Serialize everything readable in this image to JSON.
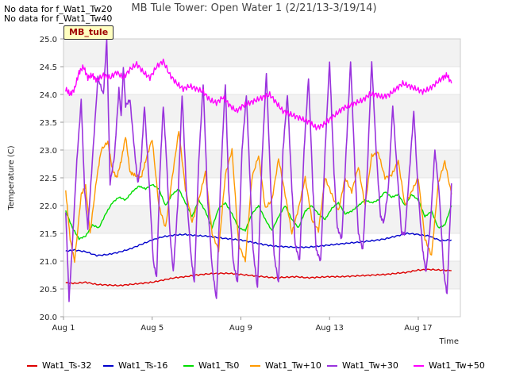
{
  "header": {
    "nodata_lines": [
      "No data for f_Wat1_Tw20",
      "No data for f_Wat1_Tw40"
    ],
    "title": "MB Tule Tower: Open Water 1 (2/21/13-3/19/14)",
    "site_badge": "MB_tule"
  },
  "chart_data": {
    "type": "line",
    "title": "MB Tule Tower: Open Water 1 (2/21/13-3/19/14)",
    "xlabel": "Time",
    "ylabel": "Temperature (C)",
    "ylim": [
      20.0,
      25.0
    ],
    "y_ticks": [
      "20.0",
      "20.5",
      "21.0",
      "21.5",
      "22.0",
      "22.5",
      "23.0",
      "23.5",
      "24.0",
      "24.5",
      "25.0"
    ],
    "xlim": [
      1.0,
      18.9
    ],
    "x_ticks": [
      {
        "value": 1,
        "label": "Aug 1"
      },
      {
        "value": 5,
        "label": "Aug 5"
      },
      {
        "value": 9,
        "label": "Aug 9"
      },
      {
        "value": 13,
        "label": "Aug 13"
      },
      {
        "value": 17,
        "label": "Aug 17"
      }
    ],
    "grid": true,
    "legend_position": "bottom",
    "series": [
      {
        "name": "Wat1_Ts-32",
        "color": "#dd0000",
        "x": [
          1.1,
          1.5,
          2,
          2.5,
          3,
          3.5,
          4,
          4.5,
          5,
          5.5,
          6,
          6.5,
          7,
          7.5,
          8,
          8.5,
          9,
          9.5,
          10,
          10.5,
          11,
          11.5,
          12,
          12.5,
          13,
          13.5,
          14,
          14.5,
          15,
          15.5,
          16,
          16.5,
          17,
          17.5,
          18,
          18.5
        ],
        "y": [
          20.61,
          20.6,
          20.62,
          20.58,
          20.57,
          20.56,
          20.58,
          20.6,
          20.62,
          20.66,
          20.7,
          20.72,
          20.75,
          20.77,
          20.78,
          20.78,
          20.76,
          20.74,
          20.72,
          20.7,
          20.71,
          20.72,
          20.7,
          20.71,
          20.72,
          20.72,
          20.73,
          20.74,
          20.75,
          20.76,
          20.78,
          20.8,
          20.84,
          20.85,
          20.84,
          20.83
        ]
      },
      {
        "name": "Wat1_Ts-16",
        "color": "#0000cc",
        "x": [
          1.1,
          1.5,
          2,
          2.5,
          3,
          3.5,
          4,
          4.5,
          5,
          5.5,
          6,
          6.5,
          7,
          7.5,
          8,
          8.5,
          9,
          9.5,
          10,
          10.5,
          11,
          11.5,
          12,
          12.5,
          13,
          13.5,
          14,
          14.5,
          15,
          15.5,
          16,
          16.5,
          17,
          17.5,
          18,
          18.5
        ],
        "y": [
          21.18,
          21.2,
          21.17,
          21.1,
          21.12,
          21.16,
          21.22,
          21.3,
          21.38,
          21.44,
          21.47,
          21.48,
          21.46,
          21.45,
          21.42,
          21.4,
          21.38,
          21.34,
          21.3,
          21.27,
          21.26,
          21.25,
          21.25,
          21.27,
          21.29,
          21.31,
          21.33,
          21.35,
          21.37,
          21.4,
          21.45,
          21.5,
          21.48,
          21.45,
          21.37,
          21.38
        ]
      },
      {
        "name": "Wat1_Ts0",
        "color": "#00dd00",
        "x": [
          1.1,
          1.4,
          1.7,
          2.0,
          2.3,
          2.6,
          2.9,
          3.2,
          3.5,
          3.8,
          4.1,
          4.4,
          4.7,
          5.0,
          5.3,
          5.6,
          5.9,
          6.2,
          6.5,
          6.8,
          7.1,
          7.4,
          7.7,
          8.0,
          8.3,
          8.6,
          8.9,
          9.2,
          9.5,
          9.8,
          10.1,
          10.4,
          10.7,
          11.0,
          11.3,
          11.6,
          11.9,
          12.2,
          12.5,
          12.8,
          13.1,
          13.4,
          13.7,
          14.0,
          14.3,
          14.6,
          14.9,
          15.2,
          15.5,
          15.8,
          16.1,
          16.4,
          16.7,
          17.0,
          17.3,
          17.6,
          17.9,
          18.2,
          18.5
        ],
        "y": [
          21.9,
          21.6,
          21.4,
          21.45,
          21.65,
          21.6,
          21.85,
          22.05,
          22.15,
          22.1,
          22.25,
          22.35,
          22.3,
          22.38,
          22.3,
          22.0,
          22.2,
          22.3,
          22.05,
          21.8,
          22.1,
          21.9,
          21.6,
          21.95,
          22.05,
          21.85,
          21.6,
          21.55,
          21.85,
          22.0,
          21.75,
          21.55,
          21.8,
          22.0,
          21.75,
          21.6,
          21.9,
          22.0,
          21.85,
          21.75,
          21.95,
          22.05,
          21.85,
          21.9,
          22.0,
          22.1,
          22.05,
          22.1,
          22.25,
          22.15,
          22.2,
          22.0,
          22.2,
          22.1,
          21.8,
          21.9,
          21.6,
          21.65,
          22.0
        ]
      },
      {
        "name": "Wat1_Tw+10",
        "color": "#ff9900",
        "x": [
          1.1,
          1.3,
          1.5,
          1.8,
          2.0,
          2.2,
          2.5,
          2.7,
          3.0,
          3.2,
          3.4,
          3.6,
          3.8,
          4.0,
          4.2,
          4.5,
          4.7,
          5.0,
          5.3,
          5.6,
          5.9,
          6.2,
          6.5,
          6.8,
          7.1,
          7.4,
          7.7,
          8.0,
          8.3,
          8.6,
          8.9,
          9.2,
          9.5,
          9.8,
          10.1,
          10.4,
          10.7,
          11.0,
          11.3,
          11.6,
          11.9,
          12.2,
          12.5,
          12.8,
          13.1,
          13.4,
          13.7,
          14.0,
          14.3,
          14.6,
          14.9,
          15.2,
          15.5,
          15.8,
          16.1,
          16.4,
          16.7,
          17.0,
          17.3,
          17.6,
          17.9,
          18.2,
          18.5
        ],
        "y": [
          22.27,
          21.4,
          21.0,
          22.2,
          22.35,
          21.5,
          22.5,
          23.0,
          23.15,
          22.65,
          22.5,
          22.8,
          23.25,
          22.6,
          22.55,
          22.5,
          22.8,
          23.2,
          22.0,
          21.6,
          22.5,
          23.35,
          22.3,
          21.7,
          22.1,
          22.6,
          21.5,
          21.2,
          22.55,
          23.0,
          21.3,
          21.0,
          22.5,
          22.9,
          21.95,
          22.1,
          22.85,
          22.2,
          21.5,
          21.95,
          22.5,
          21.75,
          21.55,
          22.5,
          22.2,
          21.9,
          22.5,
          22.25,
          22.7,
          22.0,
          22.9,
          22.95,
          22.5,
          22.55,
          22.8,
          22.0,
          22.25,
          22.5,
          21.4,
          21.1,
          22.4,
          22.8,
          22.2
        ]
      },
      {
        "name": "Wat1_Tw+30",
        "color": "#9933dd",
        "x": [
          1.1,
          1.25,
          1.4,
          1.6,
          1.8,
          1.95,
          2.1,
          2.3,
          2.55,
          2.8,
          2.95,
          3.1,
          3.3,
          3.5,
          3.6,
          3.7,
          3.8,
          4.0,
          4.2,
          4.35,
          4.5,
          4.65,
          4.85,
          5.05,
          5.2,
          5.35,
          5.5,
          5.65,
          5.8,
          5.95,
          6.15,
          6.35,
          6.55,
          6.75,
          6.9,
          7.1,
          7.3,
          7.5,
          7.7,
          7.9,
          8.1,
          8.3,
          8.45,
          8.65,
          8.85,
          9.05,
          9.25,
          9.4,
          9.55,
          9.75,
          9.95,
          10.15,
          10.35,
          10.5,
          10.7,
          10.9,
          11.1,
          11.3,
          11.45,
          11.65,
          11.85,
          12.05,
          12.25,
          12.4,
          12.6,
          12.8,
          13.0,
          13.2,
          13.35,
          13.55,
          13.75,
          13.95,
          14.15,
          14.3,
          14.5,
          14.7,
          14.9,
          15.1,
          15.3,
          15.45,
          15.65,
          15.85,
          16.05,
          16.25,
          16.4,
          16.6,
          16.8,
          17.0,
          17.2,
          17.35,
          17.55,
          17.75,
          17.95,
          18.15,
          18.3,
          18.5
        ],
        "y": [
          21.9,
          20.3,
          21.3,
          22.8,
          23.9,
          22.3,
          21.6,
          22.8,
          24.3,
          24.0,
          25.0,
          22.4,
          22.9,
          24.1,
          23.6,
          24.5,
          23.8,
          23.9,
          23.0,
          22.4,
          22.8,
          23.8,
          22.5,
          21.0,
          20.7,
          22.6,
          23.8,
          22.8,
          21.5,
          20.8,
          22.0,
          24.0,
          22.2,
          21.1,
          20.6,
          22.8,
          24.2,
          22.1,
          20.9,
          20.3,
          22.6,
          24.2,
          22.3,
          21.0,
          20.6,
          23.0,
          24.0,
          22.6,
          21.2,
          20.5,
          22.8,
          24.4,
          22.3,
          21.1,
          20.6,
          23.0,
          24.0,
          22.3,
          21.3,
          21.0,
          23.0,
          24.3,
          22.3,
          21.2,
          21.0,
          23.0,
          24.6,
          22.6,
          21.6,
          21.4,
          23.0,
          24.6,
          22.6,
          21.5,
          21.2,
          22.6,
          24.6,
          23.0,
          21.8,
          21.7,
          22.3,
          23.8,
          22.6,
          21.5,
          21.5,
          22.6,
          23.7,
          22.2,
          21.2,
          20.8,
          21.7,
          23.0,
          22.2,
          20.8,
          20.4,
          22.4
        ]
      },
      {
        "name": "Wat1_Tw+50",
        "color": "#ff00ff",
        "x": [
          1.1,
          1.3,
          1.5,
          1.7,
          1.9,
          2.1,
          2.3,
          2.5,
          2.8,
          3.1,
          3.4,
          3.7,
          4.0,
          4.3,
          4.6,
          4.9,
          5.2,
          5.5,
          5.8,
          6.1,
          6.4,
          6.7,
          7.0,
          7.3,
          7.6,
          7.9,
          8.2,
          8.5,
          8.8,
          9.1,
          9.4,
          9.7,
          10.0,
          10.3,
          10.6,
          10.9,
          11.2,
          11.5,
          11.8,
          12.1,
          12.4,
          12.7,
          13.0,
          13.3,
          13.6,
          13.9,
          14.2,
          14.5,
          14.8,
          15.1,
          15.4,
          15.7,
          16.0,
          16.3,
          16.6,
          16.9,
          17.2,
          17.5,
          17.8,
          18.1,
          18.3,
          18.5
        ],
        "y": [
          24.1,
          24.0,
          24.1,
          24.4,
          24.5,
          24.3,
          24.35,
          24.25,
          24.35,
          24.3,
          24.4,
          24.3,
          24.45,
          24.55,
          24.4,
          24.3,
          24.5,
          24.6,
          24.35,
          24.2,
          24.1,
          24.15,
          24.1,
          24.05,
          23.9,
          23.85,
          23.95,
          23.8,
          23.7,
          23.8,
          23.85,
          23.9,
          23.95,
          24.0,
          23.85,
          23.7,
          23.65,
          23.6,
          23.55,
          23.5,
          23.4,
          23.45,
          23.55,
          23.65,
          23.75,
          23.8,
          23.85,
          23.9,
          24.0,
          24.0,
          23.95,
          24.0,
          24.1,
          24.2,
          24.15,
          24.1,
          24.05,
          24.1,
          24.2,
          24.3,
          24.35,
          24.2
        ]
      }
    ]
  }
}
